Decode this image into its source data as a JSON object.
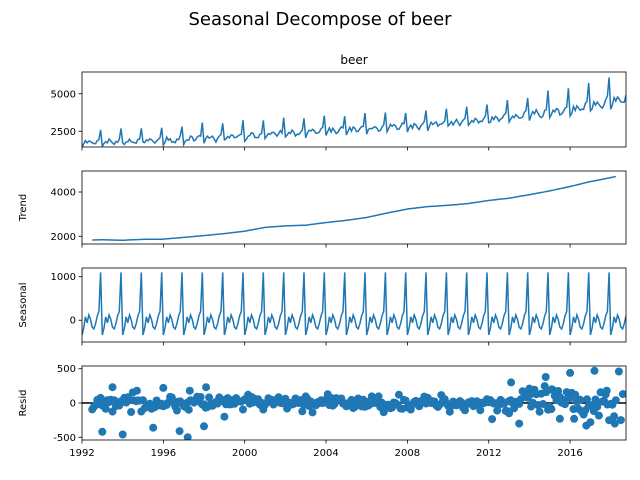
{
  "figure": {
    "title": "Seasonal Decompose of beer"
  },
  "chart_data": [
    {
      "type": "line",
      "panel": "observed",
      "title": "beer",
      "ylabel": "",
      "xlim": [
        1992.0,
        2018.75
      ],
      "ylim": [
        1450,
        6450
      ],
      "yticks": [
        2500,
        5000
      ],
      "x_ticks": [
        "1992",
        "1996",
        "2000",
        "2004",
        "2008",
        "2012",
        "2016"
      ],
      "color": "#1f77b4",
      "base_by_year": [
        [
          1992,
          1750
        ],
        [
          1996,
          1900
        ],
        [
          2000,
          2200
        ],
        [
          2004,
          2550
        ],
        [
          2008,
          2850
        ],
        [
          2012,
          3300
        ],
        [
          2016,
          3950
        ],
        [
          2018.75,
          4700
        ]
      ],
      "seasonal_scale": [
        [
          1992,
          0.75
        ],
        [
          2000,
          0.85
        ],
        [
          2008,
          0.9
        ],
        [
          2014,
          1.1
        ],
        [
          2018.75,
          1.55
        ]
      ]
    },
    {
      "type": "line",
      "panel": "trend",
      "ylabel": "Trend",
      "xlim": [
        1992.0,
        2018.75
      ],
      "ylim": [
        1650,
        4950
      ],
      "yticks": [
        2000,
        4000
      ],
      "color": "#1f77b4",
      "points": [
        [
          1992.5,
          1830
        ],
        [
          1993,
          1840
        ],
        [
          1994,
          1820
        ],
        [
          1995,
          1860
        ],
        [
          1996,
          1870
        ],
        [
          1997,
          1950
        ],
        [
          1998,
          2030
        ],
        [
          1999,
          2120
        ],
        [
          2000,
          2230
        ],
        [
          2001,
          2400
        ],
        [
          2002,
          2470
        ],
        [
          2003,
          2500
        ],
        [
          2004,
          2620
        ],
        [
          2005,
          2720
        ],
        [
          2006,
          2850
        ],
        [
          2007,
          3050
        ],
        [
          2008,
          3230
        ],
        [
          2009,
          3340
        ],
        [
          2010,
          3400
        ],
        [
          2011,
          3480
        ],
        [
          2012,
          3620
        ],
        [
          2013,
          3720
        ],
        [
          2014,
          3880
        ],
        [
          2015,
          4050
        ],
        [
          2016,
          4250
        ],
        [
          2017,
          4470
        ],
        [
          2018,
          4650
        ],
        [
          2018.25,
          4700
        ]
      ]
    },
    {
      "type": "line",
      "panel": "seasonal",
      "ylabel": "Seasonal",
      "xlim": [
        1992.0,
        2018.75
      ],
      "ylim": [
        -500,
        1200
      ],
      "yticks": [
        0,
        1000
      ],
      "color": "#1f77b4",
      "monthly_pattern": [
        -340,
        -180,
        80,
        -60,
        120,
        20,
        -160,
        -200,
        -80,
        100,
        200,
        1100
      ]
    },
    {
      "type": "scatter",
      "panel": "resid",
      "ylabel": "Resid",
      "xlim": [
        1992.0,
        2018.75
      ],
      "ylim": [
        -540,
        540
      ],
      "yticks": [
        -500,
        0,
        500
      ],
      "color": "#1f77b4",
      "zero_line": true,
      "outliers": [
        [
          1993.0,
          -420
        ],
        [
          1993.5,
          230
        ],
        [
          1994.0,
          -460
        ],
        [
          1994.7,
          180
        ],
        [
          1995.5,
          -360
        ],
        [
          1996.0,
          220
        ],
        [
          1996.8,
          -410
        ],
        [
          1997.3,
          180
        ],
        [
          1997.2,
          -500
        ],
        [
          1998.0,
          -340
        ],
        [
          1998.1,
          230
        ],
        [
          1999.0,
          -200
        ],
        [
          2013.0,
          -150
        ],
        [
          2013.1,
          300
        ],
        [
          2013.5,
          -300
        ],
        [
          2014.0,
          210
        ],
        [
          2014.8,
          380
        ],
        [
          2015.1,
          200
        ],
        [
          2015.5,
          -230
        ],
        [
          2016.0,
          440
        ],
        [
          2016.2,
          -230
        ],
        [
          2016.8,
          -330
        ],
        [
          2017.0,
          -280
        ],
        [
          2017.2,
          470
        ],
        [
          2017.8,
          180
        ],
        [
          2018.2,
          -300
        ],
        [
          2018.4,
          460
        ],
        [
          2018.5,
          -250
        ],
        [
          2018.6,
          130
        ]
      ]
    }
  ]
}
